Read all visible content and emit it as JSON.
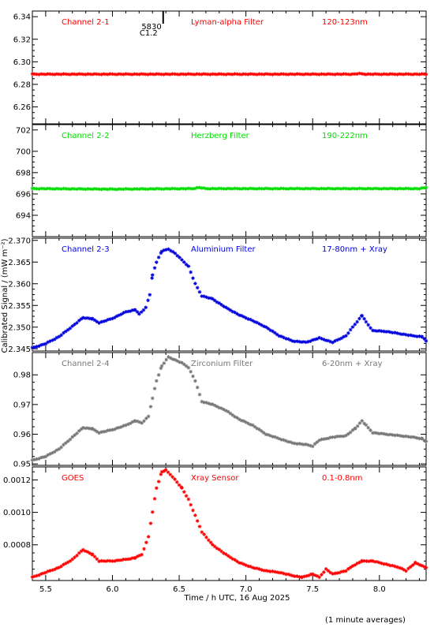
{
  "page": {
    "footnote": "(1 minute averages)"
  },
  "chart_data": {
    "type": "scatter",
    "xlabel": "Time / h UTC, 16 Aug 2025",
    "ylabel": "Calibrated Signal / (mW m⁻²)",
    "xlim": [
      5.4,
      8.35
    ],
    "x_ticks": [
      5.5,
      6.0,
      6.5,
      7.0,
      7.5,
      8.0
    ],
    "x_tick_labels": [
      "5.5",
      "6.0",
      "6.5",
      "7.0",
      "7.5",
      "8.0"
    ],
    "flare_marker": {
      "x": 6.38,
      "labels": [
        "5830",
        "C1.2"
      ]
    },
    "marker": "asterisk",
    "panels": [
      {
        "id": "channel-2-1",
        "labels": [
          "Channel 2-1",
          "Lyman-alpha Filter",
          "120-123nm"
        ],
        "color": "#ff0000",
        "ylim": [
          6.245,
          6.345
        ],
        "y_ticks": [
          6.26,
          6.28,
          6.3,
          6.32,
          6.34
        ],
        "y_tick_labels": [
          "6.26",
          "6.28",
          "6.30",
          "6.32",
          "6.34"
        ],
        "points": [
          [
            5.4,
            6.289
          ],
          [
            5.8,
            6.289
          ],
          [
            6.3,
            6.289
          ],
          [
            6.8,
            6.289
          ],
          [
            7.3,
            6.289
          ],
          [
            7.8,
            6.289
          ],
          [
            7.85,
            6.2895
          ],
          [
            7.9,
            6.289
          ],
          [
            8.35,
            6.289
          ]
        ]
      },
      {
        "id": "channel-2-2",
        "labels": [
          "Channel 2-2",
          "Herzberg Filter",
          "190-222nm"
        ],
        "color": "#00dd00",
        "ylim": [
          692.0,
          702.5
        ],
        "y_ticks": [
          694,
          696,
          698,
          700,
          702
        ],
        "y_tick_labels": [
          "694",
          "696",
          "698",
          "700",
          "702"
        ],
        "points": [
          [
            5.4,
            696.5
          ],
          [
            6.0,
            696.45
          ],
          [
            6.6,
            696.5
          ],
          [
            6.65,
            696.6
          ],
          [
            6.7,
            696.5
          ],
          [
            7.3,
            696.5
          ],
          [
            7.9,
            696.5
          ],
          [
            8.3,
            696.5
          ],
          [
            8.35,
            696.6
          ]
        ]
      },
      {
        "id": "channel-2-3",
        "labels": [
          "Channel 2-3",
          "Aluminium Filter",
          "17-80nm + Xray"
        ],
        "color": "#0000dd",
        "ylim": [
          2.3445,
          2.3705
        ],
        "y_ticks": [
          2.345,
          2.35,
          2.355,
          2.36,
          2.365,
          2.37
        ],
        "y_tick_labels": [
          "2.345",
          "2.350",
          "2.355",
          "2.360",
          "2.365",
          "2.370"
        ],
        "points": [
          [
            5.4,
            2.3452
          ],
          [
            5.5,
            2.3462
          ],
          [
            5.6,
            2.3478
          ],
          [
            5.7,
            2.3502
          ],
          [
            5.78,
            2.3522
          ],
          [
            5.85,
            2.3519
          ],
          [
            5.9,
            2.351
          ],
          [
            6.0,
            2.352
          ],
          [
            6.1,
            2.3535
          ],
          [
            6.17,
            2.354
          ],
          [
            6.2,
            2.353
          ],
          [
            6.25,
            2.3545
          ],
          [
            6.28,
            2.3575
          ],
          [
            6.3,
            2.362
          ],
          [
            6.33,
            2.365
          ],
          [
            6.37,
            2.3675
          ],
          [
            6.42,
            2.368
          ],
          [
            6.47,
            2.367
          ],
          [
            6.52,
            2.3655
          ],
          [
            6.57,
            2.364
          ],
          [
            6.62,
            2.36
          ],
          [
            6.67,
            2.3572
          ],
          [
            6.75,
            2.3565
          ],
          [
            6.85,
            2.3545
          ],
          [
            6.95,
            2.3528
          ],
          [
            7.05,
            2.3515
          ],
          [
            7.15,
            2.35
          ],
          [
            7.25,
            2.348
          ],
          [
            7.35,
            2.3468
          ],
          [
            7.45,
            2.3465
          ],
          [
            7.55,
            2.3475
          ],
          [
            7.65,
            2.3465
          ],
          [
            7.75,
            2.348
          ],
          [
            7.8,
            2.35
          ],
          [
            7.87,
            2.3527
          ],
          [
            7.9,
            2.3512
          ],
          [
            7.95,
            2.3492
          ],
          [
            8.05,
            2.349
          ],
          [
            8.15,
            2.3485
          ],
          [
            8.25,
            2.348
          ],
          [
            8.32,
            2.3478
          ],
          [
            8.35,
            2.3468
          ]
        ]
      },
      {
        "id": "channel-2-4",
        "labels": [
          "Channel 2-4",
          "Zirconium Filter",
          "6-20nm + Xray"
        ],
        "color": "#777777",
        "ylim": [
          0.9495,
          0.9875
        ],
        "y_ticks": [
          0.95,
          0.96,
          0.97,
          0.98
        ],
        "y_tick_labels": [
          "0.95",
          "0.96",
          "0.97",
          "0.98"
        ],
        "points": [
          [
            5.4,
            0.9512
          ],
          [
            5.5,
            0.9525
          ],
          [
            5.6,
            0.955
          ],
          [
            5.7,
            0.959
          ],
          [
            5.78,
            0.9622
          ],
          [
            5.85,
            0.9618
          ],
          [
            5.9,
            0.9605
          ],
          [
            6.0,
            0.9615
          ],
          [
            6.1,
            0.963
          ],
          [
            6.17,
            0.9645
          ],
          [
            6.22,
            0.9638
          ],
          [
            6.27,
            0.966
          ],
          [
            6.3,
            0.972
          ],
          [
            6.33,
            0.978
          ],
          [
            6.37,
            0.983
          ],
          [
            6.42,
            0.986
          ],
          [
            6.47,
            0.985
          ],
          [
            6.52,
            0.984
          ],
          [
            6.57,
            0.9825
          ],
          [
            6.62,
            0.978
          ],
          [
            6.67,
            0.971
          ],
          [
            6.75,
            0.97
          ],
          [
            6.85,
            0.968
          ],
          [
            6.95,
            0.965
          ],
          [
            7.05,
            0.963
          ],
          [
            7.15,
            0.96
          ],
          [
            7.25,
            0.9585
          ],
          [
            7.35,
            0.957
          ],
          [
            7.45,
            0.9565
          ],
          [
            7.5,
            0.956
          ],
          [
            7.55,
            0.958
          ],
          [
            7.65,
            0.959
          ],
          [
            7.75,
            0.9595
          ],
          [
            7.82,
            0.962
          ],
          [
            7.87,
            0.9645
          ],
          [
            7.9,
            0.963
          ],
          [
            7.95,
            0.9605
          ],
          [
            8.05,
            0.96
          ],
          [
            8.15,
            0.9595
          ],
          [
            8.25,
            0.959
          ],
          [
            8.32,
            0.9585
          ],
          [
            8.35,
            0.9575
          ]
        ]
      },
      {
        "id": "goes",
        "labels": [
          "GOES",
          "Xray Sensor",
          "0.1-0.8nm"
        ],
        "color": "#ff0000",
        "ylim": [
          0.00058,
          0.00128
        ],
        "y_ticks": [
          0.0008,
          0.001,
          0.0012
        ],
        "y_tick_labels": [
          "0.0008",
          "0.0010",
          "0.0012"
        ],
        "points": [
          [
            5.4,
            0.0006
          ],
          [
            5.5,
            0.00063
          ],
          [
            5.6,
            0.00066
          ],
          [
            5.7,
            0.00071
          ],
          [
            5.78,
            0.00077
          ],
          [
            5.85,
            0.00074
          ],
          [
            5.9,
            0.0007
          ],
          [
            6.0,
            0.0007
          ],
          [
            6.1,
            0.00071
          ],
          [
            6.17,
            0.00072
          ],
          [
            6.22,
            0.00074
          ],
          [
            6.27,
            0.00085
          ],
          [
            6.3,
            0.001
          ],
          [
            6.33,
            0.00115
          ],
          [
            6.37,
            0.00125
          ],
          [
            6.4,
            0.00126
          ],
          [
            6.45,
            0.00122
          ],
          [
            6.52,
            0.00115
          ],
          [
            6.57,
            0.00108
          ],
          [
            6.62,
            0.00098
          ],
          [
            6.67,
            0.00088
          ],
          [
            6.75,
            0.0008
          ],
          [
            6.85,
            0.00074
          ],
          [
            6.95,
            0.00069
          ],
          [
            7.05,
            0.00066
          ],
          [
            7.15,
            0.00064
          ],
          [
            7.25,
            0.00063
          ],
          [
            7.35,
            0.00061
          ],
          [
            7.42,
            0.0006
          ],
          [
            7.5,
            0.00062
          ],
          [
            7.55,
            0.0006
          ],
          [
            7.6,
            0.00065
          ],
          [
            7.65,
            0.00062
          ],
          [
            7.75,
            0.00064
          ],
          [
            7.8,
            0.00067
          ],
          [
            7.87,
            0.0007
          ],
          [
            7.95,
            0.0007
          ],
          [
            8.05,
            0.00068
          ],
          [
            8.15,
            0.00066
          ],
          [
            8.2,
            0.00064
          ],
          [
            8.27,
            0.00069
          ],
          [
            8.32,
            0.00067
          ],
          [
            8.35,
            0.00066
          ]
        ]
      }
    ]
  }
}
